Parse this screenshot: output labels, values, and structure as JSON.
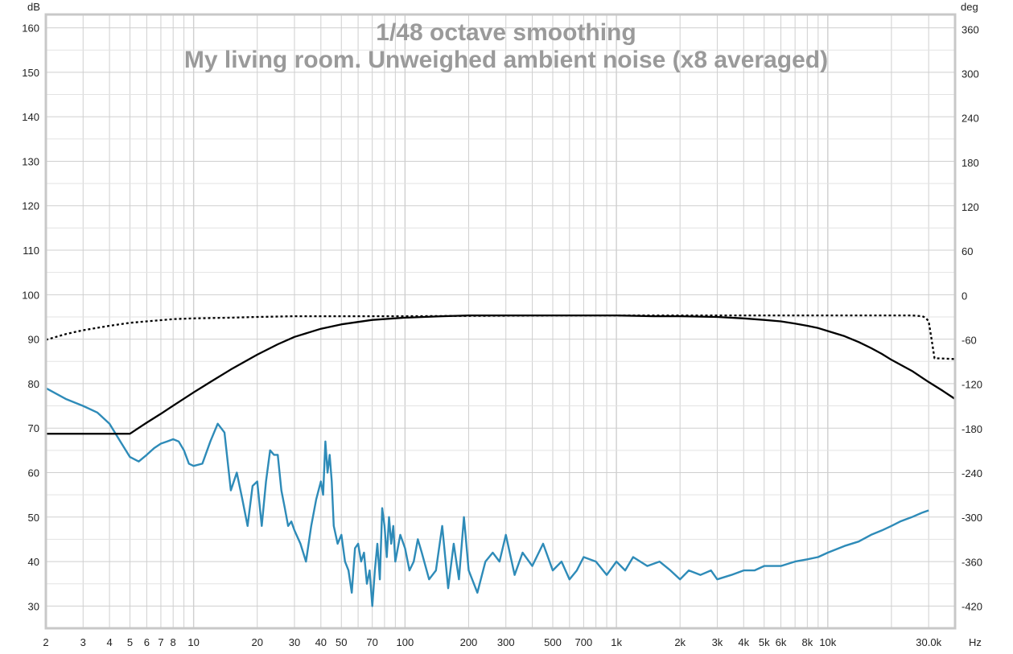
{
  "chart_data": {
    "type": "line",
    "title": "1/48 octave smoothing",
    "subtitle": "My living room. Unweighed ambient noise (x8 averaged)",
    "x_unit": "Hz",
    "y_unit_left": "dB",
    "y_unit_right": "deg",
    "x_scale": "log",
    "xlim": [
      2,
      40000
    ],
    "ylim_left": [
      25,
      163
    ],
    "ylim_right": [
      -450,
      380
    ],
    "grid": true,
    "x_tick_labels": [
      "2",
      "3",
      "4",
      "5",
      "6",
      "7",
      "8",
      "10",
      "20",
      "30",
      "40",
      "50",
      "70",
      "100",
      "200",
      "300",
      "500",
      "700",
      "1k",
      "2k",
      "3k",
      "4k",
      "5k",
      "6k",
      "8k",
      "10k",
      "30.0k"
    ],
    "x_tick_values": [
      2,
      3,
      4,
      5,
      6,
      7,
      8,
      10,
      20,
      30,
      40,
      50,
      70,
      100,
      200,
      300,
      500,
      700,
      1000,
      2000,
      3000,
      4000,
      5000,
      6000,
      8000,
      10000,
      30000
    ],
    "y_ticks_left": [
      30,
      40,
      50,
      60,
      70,
      80,
      90,
      100,
      110,
      120,
      130,
      140,
      150,
      160
    ],
    "y_ticks_right": [
      -420,
      -360,
      -300,
      -240,
      -180,
      -120,
      -60,
      0,
      60,
      120,
      180,
      240,
      300,
      360
    ],
    "series": [
      {
        "axis": "left",
        "color": "#2e8bb8",
        "style": "solid",
        "x": [
          2,
          2.5,
          3,
          3.5,
          4,
          4.5,
          5,
          5.5,
          6,
          6.5,
          7,
          7.5,
          8,
          8.5,
          9,
          9.5,
          10,
          11,
          12,
          13,
          14,
          15,
          16,
          17,
          18,
          19,
          20,
          21,
          22,
          23,
          24,
          25,
          26,
          27,
          28,
          29,
          30,
          32,
          34,
          36,
          38,
          40,
          41,
          42,
          43,
          44,
          45,
          46,
          48,
          50,
          52,
          54,
          56,
          58,
          60,
          62,
          64,
          66,
          68,
          70,
          72,
          74,
          76,
          78,
          80,
          82,
          84,
          86,
          88,
          90,
          95,
          100,
          105,
          110,
          115,
          120,
          130,
          140,
          150,
          160,
          170,
          180,
          190,
          200,
          220,
          240,
          260,
          280,
          300,
          330,
          360,
          400,
          450,
          500,
          550,
          600,
          650,
          700,
          800,
          900,
          1000,
          1100,
          1200,
          1400,
          1600,
          1800,
          2000,
          2200,
          2500,
          2800,
          3000,
          3500,
          4000,
          4500,
          5000,
          6000,
          7000,
          8000,
          9000,
          10000,
          12000,
          14000,
          16000,
          18000,
          20000,
          22000,
          25000,
          28000,
          30000
        ],
        "y": [
          79,
          76.5,
          75,
          73.5,
          71,
          67,
          63.5,
          62.5,
          64,
          65.5,
          66.5,
          67,
          67.5,
          67,
          65,
          62,
          61.5,
          62,
          67,
          71,
          69,
          56,
          60,
          54,
          48,
          57,
          58,
          48,
          58,
          65,
          64,
          64,
          56,
          52,
          48,
          49,
          47,
          44,
          40,
          48,
          54,
          58,
          55,
          67,
          60,
          64,
          58,
          48,
          44,
          46,
          40,
          38,
          33,
          43,
          44,
          40,
          42,
          35,
          38,
          30,
          38,
          44,
          36,
          52,
          48,
          41,
          50,
          44,
          48,
          40,
          46,
          43,
          38,
          40,
          45,
          42,
          36,
          38,
          48,
          34,
          44,
          36,
          50,
          38,
          33,
          40,
          42,
          40,
          46,
          37,
          42,
          39,
          44,
          38,
          40,
          36,
          38,
          41,
          40,
          37,
          40,
          38,
          41,
          39,
          40,
          38,
          36,
          38,
          37,
          38,
          36,
          37,
          38,
          38,
          39,
          39,
          40,
          40.5,
          41,
          42,
          43.5,
          44.5,
          46,
          47,
          48,
          49,
          50,
          51,
          51.5
        ]
      },
      {
        "axis": "right",
        "color": "#000000",
        "style": "solid",
        "x": [
          2,
          3,
          4,
          5,
          5.5,
          6,
          7,
          8,
          10,
          12,
          15,
          20,
          25,
          30,
          40,
          50,
          70,
          100,
          150,
          200,
          300,
          500,
          700,
          1000,
          1500,
          2000,
          3000,
          4000,
          5000,
          6000,
          7000,
          8000,
          9000,
          10000,
          12000,
          14000,
          16000,
          18000,
          20000,
          25000,
          30000,
          35000,
          40000
        ],
        "y": [
          -187,
          -187,
          -187,
          -187,
          -179,
          -172,
          -160,
          -149,
          -131,
          -117,
          -100,
          -80,
          -66,
          -56,
          -45,
          -39,
          -33,
          -30,
          -28,
          -27,
          -27,
          -27,
          -27,
          -27,
          -28,
          -28,
          -29,
          -31,
          -33,
          -35,
          -38,
          -41,
          -44,
          -48,
          -55,
          -63,
          -71,
          -79,
          -87,
          -102,
          -117,
          -129,
          -140
        ]
      },
      {
        "axis": "right",
        "color": "#000000",
        "style": "dotted",
        "x": [
          2,
          2.5,
          3,
          4,
          5,
          6,
          8,
          10,
          15,
          20,
          30,
          50,
          100,
          500,
          1000,
          10000,
          20000,
          25000,
          28000,
          29000,
          30000,
          31000,
          32000,
          34000,
          40000
        ],
        "y": [
          -60,
          -52,
          -47,
          -41,
          -37,
          -35,
          -32,
          -31,
          -30,
          -29,
          -28,
          -28,
          -28,
          -27,
          -27,
          -27,
          -27,
          -27,
          -28,
          -30,
          -35,
          -60,
          -85,
          -85,
          -86
        ]
      }
    ]
  }
}
